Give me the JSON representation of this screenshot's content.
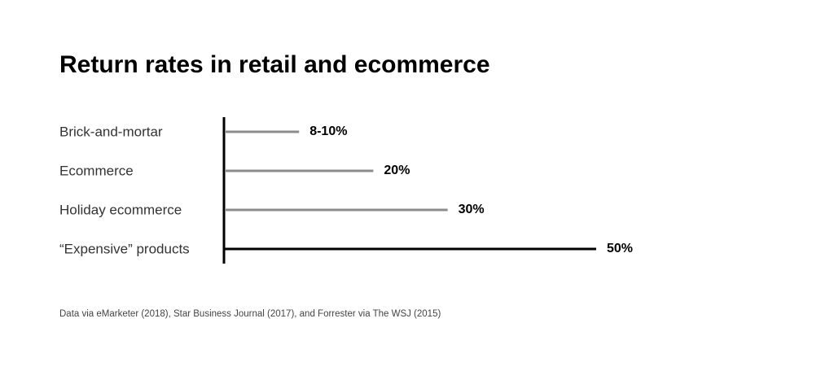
{
  "chart_data": {
    "type": "bar",
    "orientation": "horizontal",
    "title": "Return rates in retail and ecommerce",
    "categories": [
      "Brick-and-mortar",
      "Ecommerce",
      "Holiday ecommerce",
      "“Expensive” products"
    ],
    "values": [
      10,
      20,
      30,
      50
    ],
    "value_labels": [
      "8-10%",
      "20%",
      "30%",
      "50%"
    ],
    "colors": [
      "#8c8c8c",
      "#8c8c8c",
      "#8c8c8c",
      "#000000"
    ],
    "xlim": [
      0,
      50
    ],
    "source": "Data via eMarketer (2018), Star Business Journal (2017), and Forrester via The WSJ (2015)"
  }
}
